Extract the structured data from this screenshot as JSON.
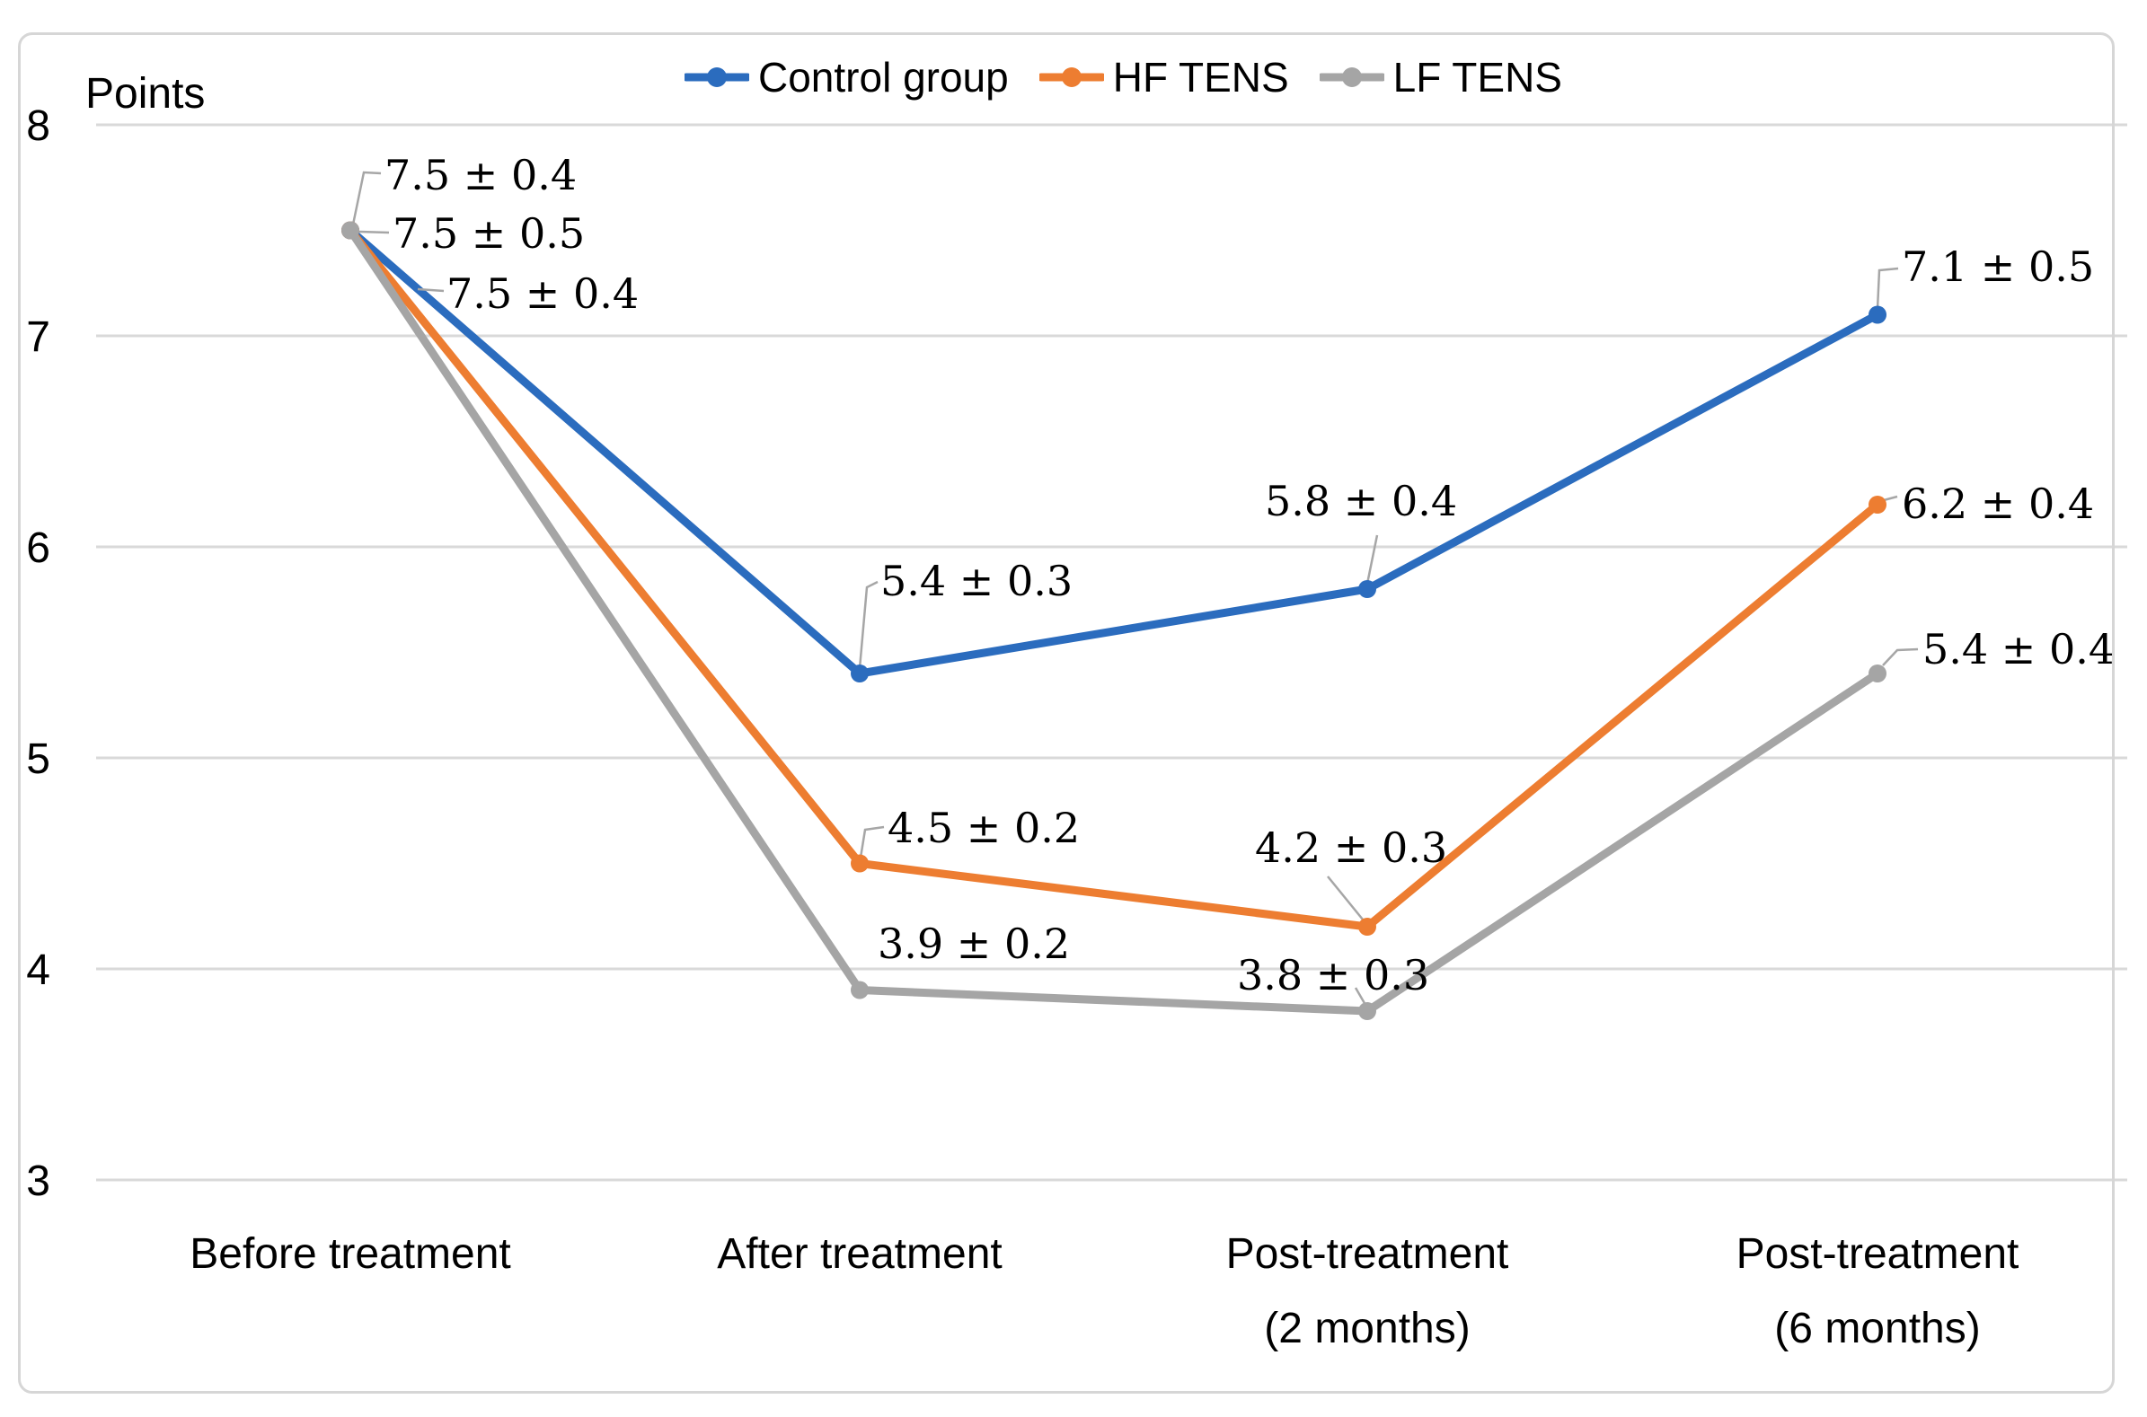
{
  "chart_data": {
    "type": "line",
    "ylabel": "Points",
    "categories": [
      [
        "Before treatment"
      ],
      [
        "After treatment"
      ],
      [
        "Post-treatment",
        "(2 months)"
      ],
      [
        "Post-treatment",
        "(6 months)"
      ]
    ],
    "y_ticks": [
      "8",
      "7",
      "6",
      "5",
      "4",
      "3"
    ],
    "ylim": [
      3,
      8
    ],
    "grid": "horizontal",
    "legend_position": "top-center",
    "gridline_color": "#d9d9d9",
    "leader_line_color": "#a6a6a6",
    "series": [
      {
        "name": "Control group",
        "color": "#2b6cbe",
        "values": [
          7.5,
          5.4,
          5.8,
          7.1
        ],
        "labels": [
          "7.5 ± 0.4",
          "5.4 ± 0.3",
          "5.8 ± 0.4",
          "7.1 ± 0.5"
        ]
      },
      {
        "name": "HF TENS",
        "color": "#ed7d31",
        "values": [
          7.5,
          4.5,
          4.2,
          6.2
        ],
        "labels": [
          "7.5 ± 0.5",
          "4.5 ± 0.2",
          "4.2 ± 0.3",
          "6.2 ± 0.4"
        ]
      },
      {
        "name": "LF TENS",
        "color": "#a5a5a5",
        "values": [
          7.5,
          3.9,
          3.8,
          5.4
        ],
        "labels": [
          "7.5 ± 0.4",
          "3.9 ± 0.2",
          "3.8 ± 0.3",
          "5.4 ± 0.4"
        ]
      }
    ]
  }
}
